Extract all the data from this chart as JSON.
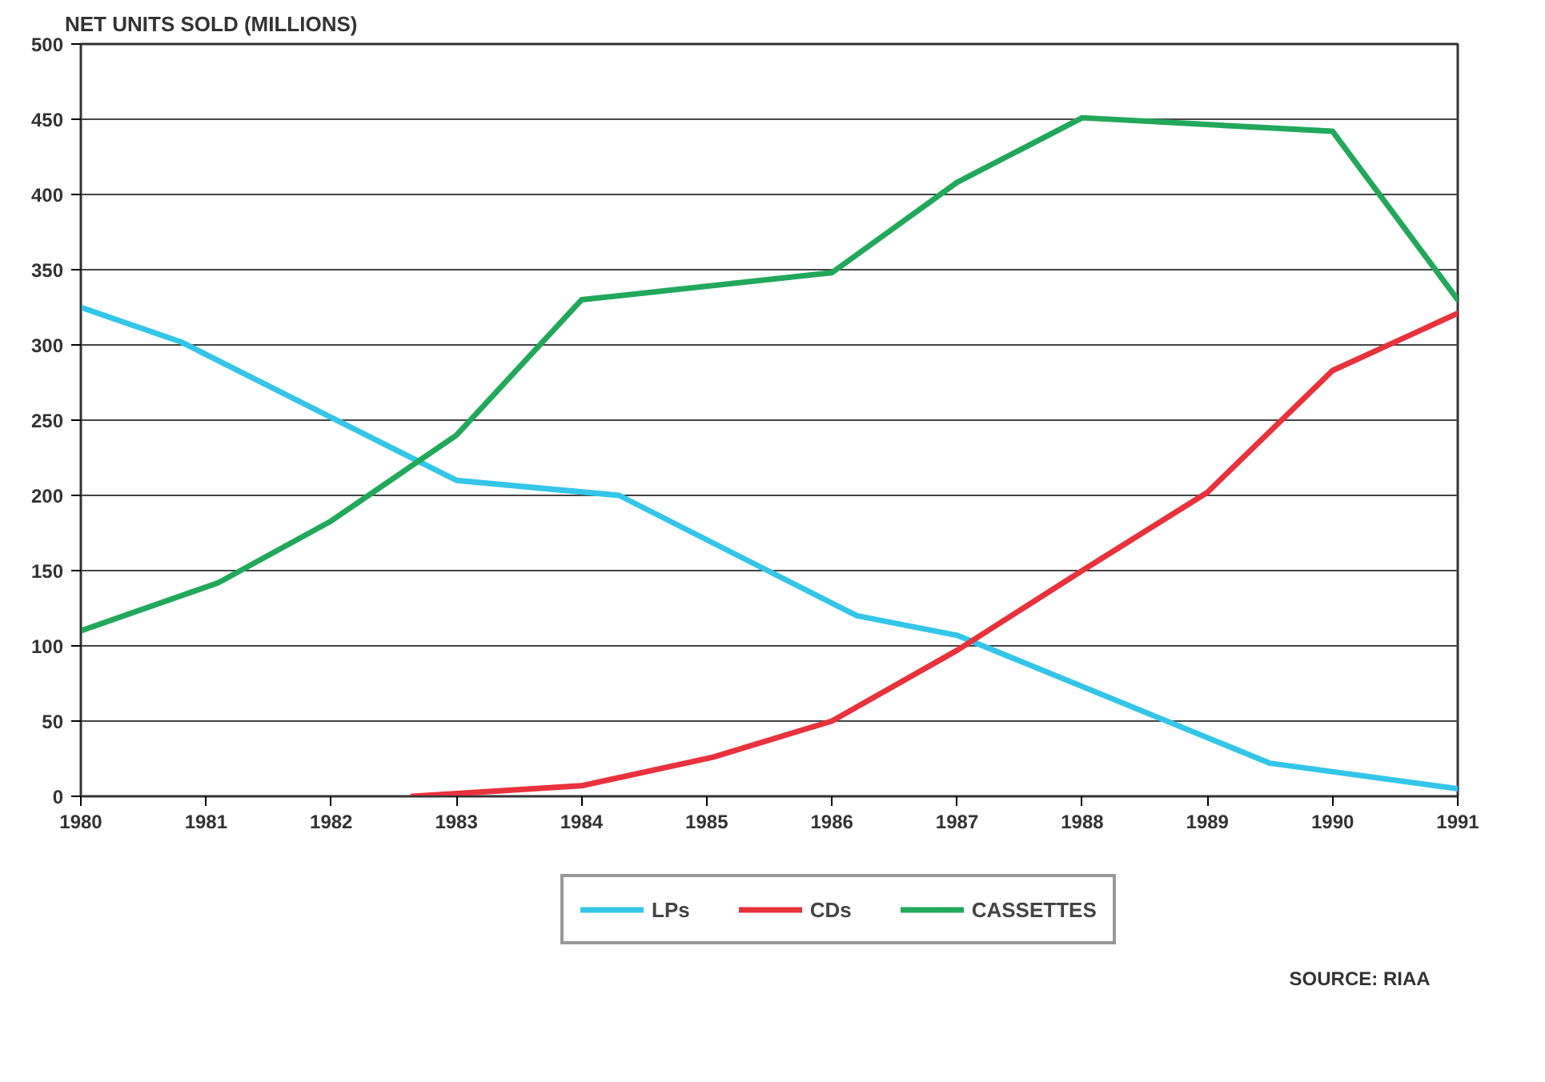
{
  "chart_data": {
    "type": "line",
    "ylabel": "NET UNITS SOLD (MILLIONS)",
    "xlim": [
      1980,
      1991
    ],
    "xticks": [
      1980,
      1981,
      1982,
      1983,
      1984,
      1985,
      1986,
      1987,
      1988,
      1989,
      1990,
      1991
    ],
    "ylim": [
      0,
      500
    ],
    "yticks": [
      0,
      50,
      100,
      150,
      200,
      250,
      300,
      350,
      400,
      450,
      500
    ],
    "grid": "y",
    "legend": "bottom",
    "marker": "none",
    "line_style": "solid",
    "series": [
      {
        "name": "LPs",
        "color": "#33c6e8",
        "x": [
          1980,
          1980.8,
          1983,
          1984.3,
          1986.2,
          1987,
          1989.5,
          1991
        ],
        "values": [
          325,
          302,
          210,
          200,
          120,
          107,
          22,
          5
        ]
      },
      {
        "name": "CDs",
        "color": "#e8323c",
        "x": [
          1982.65,
          1984,
          1985.05,
          1986,
          1987,
          1988,
          1989,
          1990,
          1991
        ],
        "values": [
          0,
          7,
          26,
          50,
          97,
          150,
          202,
          283,
          321
        ]
      },
      {
        "name": "CASSETTES",
        "color": "#22a85a",
        "x": [
          1980,
          1981.1,
          1982,
          1983,
          1984,
          1986,
          1987,
          1988,
          1990,
          1991
        ],
        "values": [
          110,
          142,
          183,
          240,
          330,
          348,
          408,
          451,
          442,
          330
        ]
      }
    ],
    "annotations": [
      "SOURCE: RIAA"
    ]
  }
}
